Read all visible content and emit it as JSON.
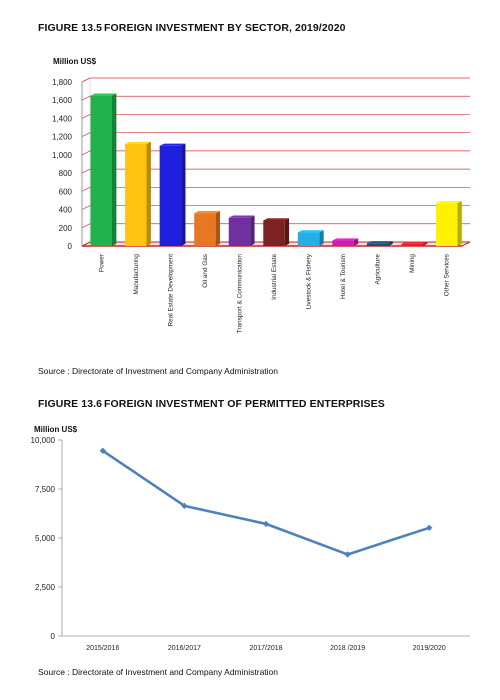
{
  "figures": [
    {
      "number": "FIGURE 13.5",
      "title": "FOREIGN INVESTMENT BY SECTOR, 2019/2020",
      "unit": "Million US$",
      "source": "Source : Directorate of Investment and Company Administration"
    },
    {
      "number": "FIGURE 13.6",
      "title": "FOREIGN INVESTMENT OF PERMITTED ENTERPRISES",
      "unit": "Million US$",
      "source": "Source : Directorate of Investment and Company Administration"
    }
  ],
  "chart_data": [
    {
      "type": "bar",
      "title": "FOREIGN INVESTMENT BY SECTOR, 2019/2020",
      "ylabel": "Million US$",
      "ylim": [
        0,
        1800
      ],
      "yticks": [
        0,
        200,
        400,
        600,
        800,
        1000,
        1200,
        1400,
        1600,
        1800
      ],
      "ytick_labels": [
        "0",
        "200",
        "400",
        "600",
        "800",
        "1,000",
        "1,200",
        "1,400",
        "1,600",
        "1,800"
      ],
      "grid": true,
      "categories": [
        "Power",
        "Manufacturing",
        "Real Estate Development",
        "Oil and Gas",
        "Transport & Communication",
        "Industrial Estate",
        "Livestock & Fishery",
        "Hotel & Tourism",
        "Agriculture",
        "Mining",
        "Other Services"
      ],
      "values": [
        1650,
        1120,
        1100,
        360,
        310,
        280,
        150,
        60,
        30,
        25,
        470
      ],
      "colors": [
        "#22b14c",
        "#ffc20e",
        "#1f1fe0",
        "#e87722",
        "#7030a0",
        "#7b2323",
        "#22aee6",
        "#cc1fb2",
        "#1e4f6e",
        "#e8202a",
        "#fff200"
      ]
    },
    {
      "type": "line",
      "title": "FOREIGN INVESTMENT OF PERMITTED ENTERPRISES",
      "ylabel": "Million US$",
      "ylim": [
        0,
        10000
      ],
      "yticks": [
        0,
        2500,
        5000,
        7500,
        10000
      ],
      "ytick_labels": [
        "0",
        "2,500",
        "5,000",
        "7,500",
        "10,000"
      ],
      "grid": false,
      "categories": [
        "2015/2016",
        "2016/2017",
        "2017/2018",
        "2018 /2019",
        "2019/2020"
      ],
      "series": [
        {
          "values": [
            9450,
            6640,
            5720,
            4160,
            5520
          ],
          "color": "#4f81bd"
        }
      ]
    }
  ]
}
